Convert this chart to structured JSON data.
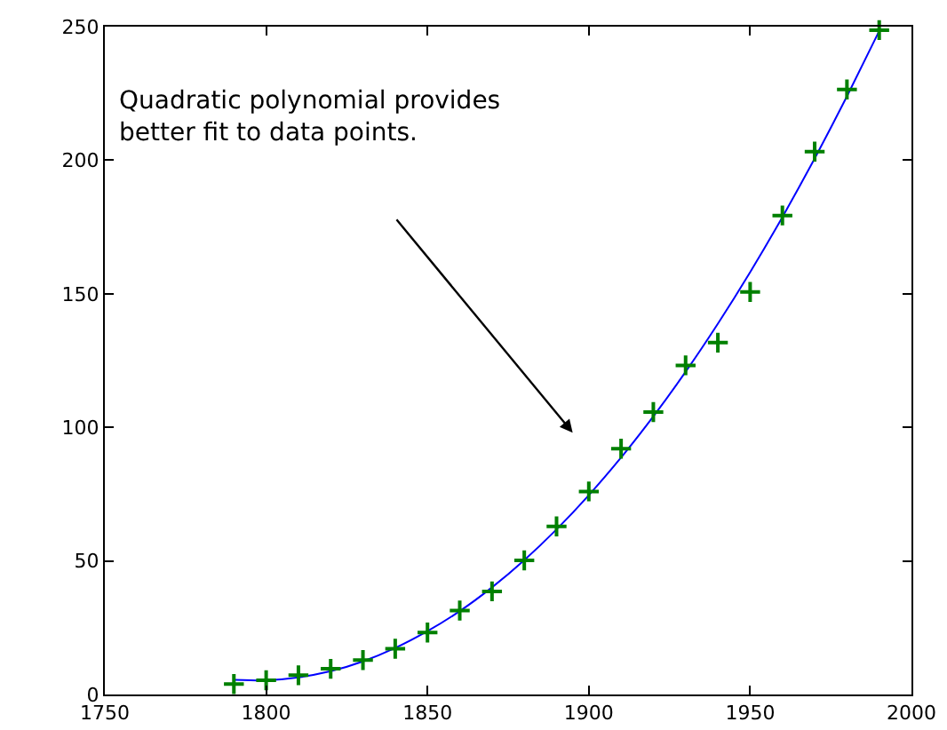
{
  "chart_data": {
    "type": "scatter",
    "xlim": [
      1750,
      2000
    ],
    "xticks": [
      1750,
      1800,
      1850,
      1900,
      1950,
      2000
    ],
    "ylim": [
      0,
      250
    ],
    "yticks": [
      0,
      50,
      100,
      150,
      200,
      250
    ],
    "grid": false,
    "series": [
      {
        "marker": "cross",
        "color": "#008000",
        "x": [
          1790,
          1800,
          1810,
          1820,
          1830,
          1840,
          1850,
          1860,
          1870,
          1880,
          1890,
          1900,
          1910,
          1920,
          1930,
          1940,
          1950,
          1960,
          1970,
          1980,
          1990
        ],
        "values": [
          3.9,
          5.3,
          7.2,
          9.6,
          12.9,
          17.1,
          23.2,
          31.4,
          38.6,
          50.2,
          62.9,
          76.0,
          92.0,
          105.7,
          123.2,
          131.7,
          150.7,
          179.3,
          203.2,
          226.5,
          248.7
        ]
      },
      {
        "type": "line",
        "marker": "none",
        "line_style": "solid",
        "color": "#0000ff",
        "x": [
          1790,
          1800,
          1810,
          1820,
          1830,
          1840,
          1850,
          1860,
          1870,
          1880,
          1890,
          1900,
          1910,
          1920,
          1930,
          1940,
          1950,
          1960,
          1970,
          1980,
          1990
        ],
        "values": [
          5.5,
          5.3,
          6.4,
          8.7,
          12.4,
          17.4,
          23.7,
          31.2,
          40.1,
          50.3,
          61.8,
          74.6,
          88.7,
          104.1,
          120.8,
          138.8,
          158.1,
          178.7,
          200.6,
          223.9,
          248.4
        ]
      }
    ],
    "annotations": [
      "Quadratic polynomial provides\nbetter fit to data points."
    ]
  }
}
